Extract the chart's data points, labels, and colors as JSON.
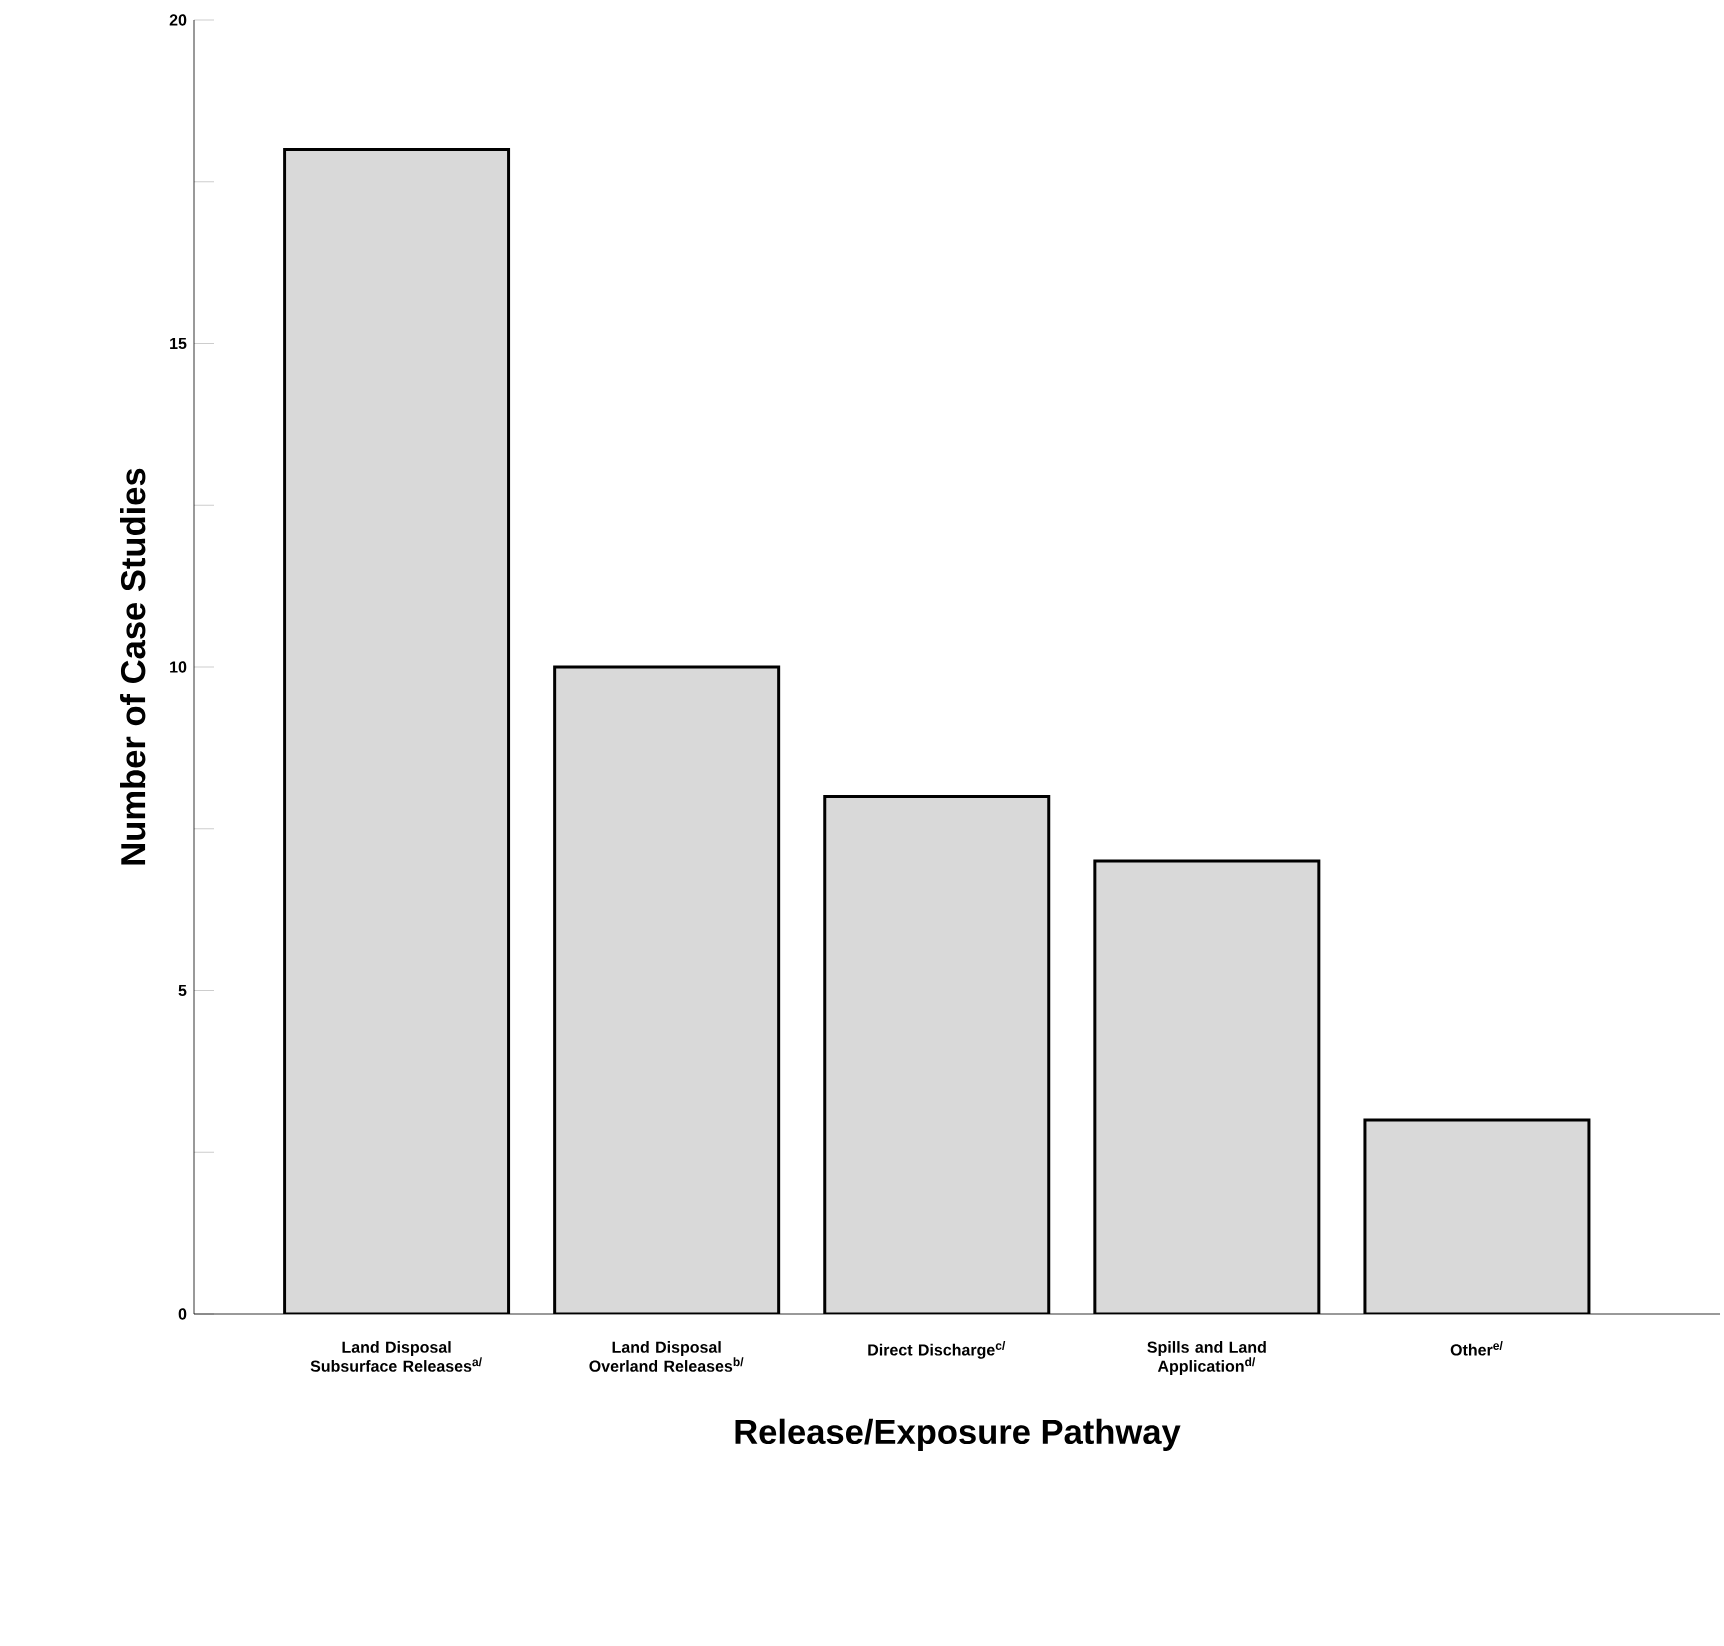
{
  "chart_data": {
    "type": "bar",
    "xlabel": "Release/Exposure Pathway",
    "ylabel": "Number of Case Studies",
    "categories": [
      "Land Disposal Subsurface Releases$^{a/}$",
      "Land Disposal Overland Releases$^{b/}$",
      "Direct Discharge$^{c/}$",
      "Spills and Land Application$^{d/}$",
      "Other$^{e/}$"
    ],
    "values": [
      18,
      10,
      8,
      7,
      3
    ],
    "color": "#d9d9d9",
    "ylim": [
      0,
      20
    ],
    "yticks": [
      0,
      5,
      10,
      15,
      20
    ],
    "grid": false
  }
}
